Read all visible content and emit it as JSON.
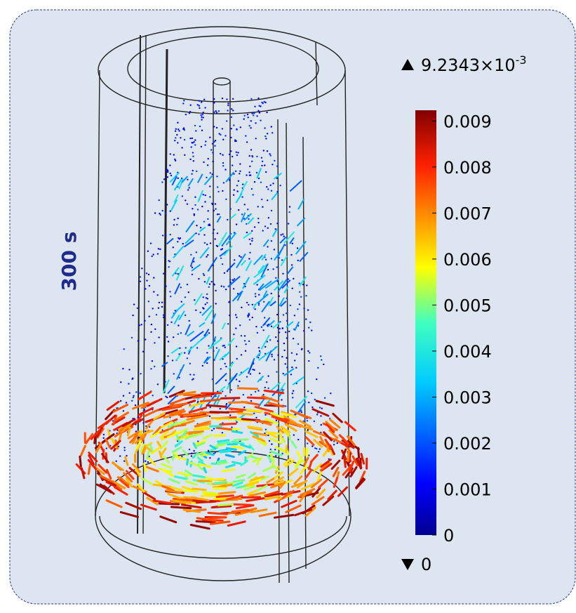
{
  "time_label": "300 s",
  "colorbar": {
    "max_label": {
      "mantissa": "9.2343×10",
      "exponent": "-3"
    },
    "min_label": "0",
    "range": [
      0,
      0.0092343
    ],
    "ticks": [
      0,
      0.001,
      0.002,
      0.003,
      0.004,
      0.005,
      0.006,
      0.007,
      0.008,
      0.009
    ]
  }
}
